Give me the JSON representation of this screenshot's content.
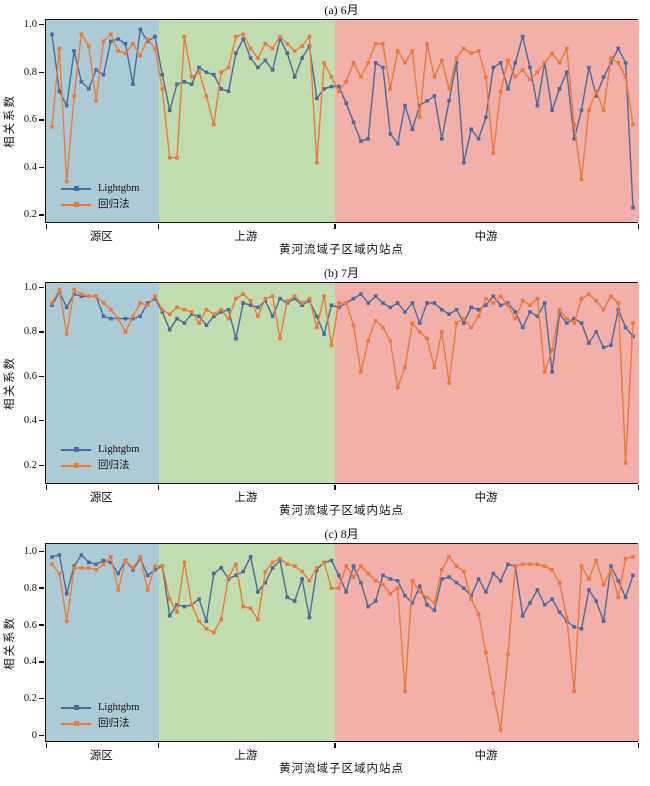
{
  "figure": {
    "ylabel": "相关系数",
    "xlabel": "黄河流域子区域内站点",
    "regions": [
      {
        "label": "源区",
        "color": "#ADCBD5",
        "count": 15
      },
      {
        "label": "上游",
        "color": "#C1DCAE",
        "count": 24
      },
      {
        "label": "中游",
        "color": "#F3AFAA",
        "count": 41
      }
    ],
    "legend": [
      {
        "label": "Lightgbm",
        "color": "#4B6B9F"
      },
      {
        "label": "回归法",
        "color": "#EC7B3B"
      }
    ],
    "frame_color": "#151515"
  },
  "chart_data": [
    {
      "type": "line",
      "title": "(a) 6月",
      "ylabel": "相关系数",
      "xlabel": "黄河流域子区域内站点",
      "marker": "square",
      "ylim": [
        0.17,
        1.02
      ],
      "yticks": [
        {
          "value": 0.2,
          "label": "0.2"
        },
        {
          "value": 0.4,
          "label": "0.4"
        },
        {
          "value": 0.6,
          "label": "0.6"
        },
        {
          "value": 0.8,
          "label": "0.8"
        },
        {
          "value": 1.0,
          "label": "1.0"
        }
      ],
      "series": [
        {
          "name": "Lightgbm",
          "color": "#4B6B9F",
          "values": [
            0.96,
            0.72,
            0.66,
            0.89,
            0.76,
            0.73,
            0.81,
            0.79,
            0.93,
            0.94,
            0.92,
            0.75,
            0.98,
            0.93,
            0.95,
            0.79,
            0.64,
            0.75,
            0.76,
            0.75,
            0.82,
            0.8,
            0.79,
            0.73,
            0.72,
            0.88,
            0.94,
            0.86,
            0.82,
            0.85,
            0.81,
            0.94,
            0.88,
            0.78,
            0.86,
            0.91,
            0.69,
            0.73,
            0.74,
            0.74,
            0.67,
            0.59,
            0.51,
            0.52,
            0.84,
            0.82,
            0.54,
            0.5,
            0.66,
            0.56,
            0.66,
            0.68,
            0.7,
            0.52,
            0.68,
            0.84,
            0.42,
            0.56,
            0.52,
            0.61,
            0.82,
            0.84,
            0.73,
            0.84,
            0.95,
            0.82,
            0.66,
            0.84,
            0.64,
            0.73,
            0.8,
            0.52,
            0.64,
            0.82,
            0.7,
            0.78,
            0.84,
            0.9,
            0.84,
            0.23
          ]
        },
        {
          "name": "回归法",
          "color": "#EC7B3B",
          "values": [
            0.57,
            0.9,
            0.34,
            0.7,
            0.96,
            0.91,
            0.68,
            0.93,
            0.96,
            0.89,
            0.88,
            0.92,
            0.87,
            0.94,
            0.9,
            0.73,
            0.44,
            0.44,
            0.95,
            0.78,
            0.8,
            0.7,
            0.58,
            0.8,
            0.82,
            0.95,
            0.96,
            0.9,
            0.86,
            0.92,
            0.9,
            0.95,
            0.92,
            0.89,
            0.91,
            0.95,
            0.42,
            0.84,
            0.78,
            0.72,
            0.76,
            0.84,
            0.78,
            0.84,
            0.92,
            0.92,
            0.73,
            0.89,
            0.84,
            0.89,
            0.61,
            0.92,
            0.78,
            0.85,
            0.73,
            0.86,
            0.9,
            0.88,
            0.89,
            0.78,
            0.46,
            0.72,
            0.85,
            0.78,
            0.81,
            0.77,
            0.8,
            0.84,
            0.88,
            0.84,
            0.9,
            0.58,
            0.35,
            0.64,
            0.72,
            0.64,
            0.86,
            0.84,
            0.78,
            0.58
          ]
        }
      ]
    },
    {
      "type": "line",
      "title": "(b) 7月",
      "ylabel": "相关系数",
      "xlabel": "黄河流域子区域内站点",
      "marker": "square",
      "ylim": [
        0.12,
        1.02
      ],
      "yticks": [
        {
          "value": 0.2,
          "label": "0.2"
        },
        {
          "value": 0.4,
          "label": "0.4"
        },
        {
          "value": 0.6,
          "label": "0.6"
        },
        {
          "value": 0.8,
          "label": "0.8"
        },
        {
          "value": 1.0,
          "label": "1.0"
        }
      ],
      "series": [
        {
          "name": "Lightgbm",
          "color": "#4B6B9F",
          "values": [
            0.92,
            0.98,
            0.91,
            0.97,
            0.96,
            0.96,
            0.96,
            0.87,
            0.86,
            0.86,
            0.86,
            0.86,
            0.87,
            0.93,
            0.95,
            0.89,
            0.81,
            0.86,
            0.84,
            0.88,
            0.87,
            0.83,
            0.87,
            0.89,
            0.9,
            0.77,
            0.93,
            0.92,
            0.91,
            0.94,
            0.87,
            0.95,
            0.93,
            0.95,
            0.92,
            0.94,
            0.87,
            0.79,
            0.92,
            0.91,
            0.93,
            0.95,
            0.97,
            0.93,
            0.96,
            0.93,
            0.91,
            0.93,
            0.89,
            0.93,
            0.84,
            0.93,
            0.93,
            0.9,
            0.88,
            0.9,
            0.84,
            0.91,
            0.9,
            0.92,
            0.96,
            0.92,
            0.93,
            0.89,
            0.82,
            0.89,
            0.87,
            0.93,
            0.62,
            0.88,
            0.84,
            0.86,
            0.84,
            0.75,
            0.8,
            0.73,
            0.74,
            0.9,
            0.82,
            0.78
          ]
        },
        {
          "name": "回归法",
          "color": "#EC7B3B",
          "values": [
            0.93,
            0.99,
            0.79,
            0.99,
            0.97,
            0.96,
            0.96,
            0.93,
            0.9,
            0.86,
            0.8,
            0.87,
            0.93,
            0.92,
            0.96,
            0.9,
            0.88,
            0.91,
            0.9,
            0.89,
            0.84,
            0.9,
            0.88,
            0.9,
            0.86,
            0.95,
            0.97,
            0.94,
            0.87,
            0.95,
            0.96,
            0.77,
            0.94,
            0.96,
            0.93,
            0.95,
            0.82,
            0.96,
            0.74,
            0.93,
            0.93,
            0.83,
            0.62,
            0.76,
            0.85,
            0.82,
            0.76,
            0.55,
            0.64,
            0.84,
            0.8,
            0.77,
            0.64,
            0.8,
            0.57,
            0.84,
            0.86,
            0.82,
            0.87,
            0.95,
            0.93,
            0.96,
            0.92,
            0.86,
            0.94,
            0.92,
            0.95,
            0.62,
            0.72,
            0.9,
            0.86,
            0.84,
            0.95,
            0.97,
            0.94,
            0.9,
            0.96,
            0.93,
            0.21,
            0.84
          ]
        }
      ]
    },
    {
      "type": "line",
      "title": "(c) 8月",
      "ylabel": "相关系数",
      "xlabel": "黄河流域子区域内站点",
      "marker": "square",
      "ylim": [
        -0.03,
        1.04
      ],
      "yticks": [
        {
          "value": 0.0,
          "label": "0"
        },
        {
          "value": 0.2,
          "label": "0.2"
        },
        {
          "value": 0.4,
          "label": "0.4"
        },
        {
          "value": 0.6,
          "label": "0.6"
        },
        {
          "value": 0.8,
          "label": "0.8"
        },
        {
          "value": 1.0,
          "label": "1.0"
        }
      ],
      "series": [
        {
          "name": "Lightgbm",
          "color": "#4B6B9F",
          "values": [
            0.97,
            0.98,
            0.77,
            0.92,
            0.98,
            0.94,
            0.93,
            0.95,
            0.94,
            0.88,
            0.95,
            0.9,
            0.96,
            0.87,
            0.9,
            0.92,
            0.65,
            0.71,
            0.7,
            0.71,
            0.74,
            0.62,
            0.88,
            0.91,
            0.85,
            0.87,
            0.89,
            0.97,
            0.78,
            0.83,
            0.91,
            0.95,
            0.75,
            0.73,
            0.85,
            0.64,
            0.9,
            0.94,
            0.95,
            0.87,
            0.78,
            0.92,
            0.83,
            0.7,
            0.73,
            0.87,
            0.85,
            0.84,
            0.76,
            0.72,
            0.81,
            0.71,
            0.68,
            0.85,
            0.86,
            0.83,
            0.8,
            0.76,
            0.85,
            0.78,
            0.88,
            0.84,
            0.93,
            0.92,
            0.65,
            0.72,
            0.79,
            0.71,
            0.74,
            0.67,
            0.62,
            0.59,
            0.58,
            0.79,
            0.73,
            0.62,
            0.92,
            0.84,
            0.75,
            0.87
          ]
        },
        {
          "name": "回归法",
          "color": "#EC7B3B",
          "values": [
            0.93,
            0.88,
            0.62,
            0.91,
            0.91,
            0.91,
            0.9,
            0.93,
            0.97,
            0.79,
            0.95,
            0.91,
            0.97,
            0.79,
            0.92,
            0.92,
            0.74,
            0.67,
            0.94,
            0.71,
            0.62,
            0.58,
            0.56,
            0.63,
            0.86,
            0.93,
            0.7,
            0.69,
            0.63,
            0.89,
            0.94,
            0.96,
            0.93,
            0.92,
            0.89,
            0.84,
            0.91,
            0.94,
            0.8,
            0.8,
            0.92,
            0.86,
            0.92,
            0.88,
            0.84,
            0.82,
            0.77,
            0.8,
            0.24,
            0.84,
            0.78,
            0.75,
            0.72,
            0.9,
            0.97,
            0.92,
            0.89,
            0.74,
            0.66,
            0.45,
            0.23,
            0.03,
            0.44,
            0.92,
            0.93,
            0.93,
            0.93,
            0.92,
            0.9,
            0.83,
            0.64,
            0.24,
            0.92,
            0.85,
            0.95,
            0.82,
            0.9,
            0.75,
            0.96,
            0.97
          ]
        }
      ]
    }
  ]
}
